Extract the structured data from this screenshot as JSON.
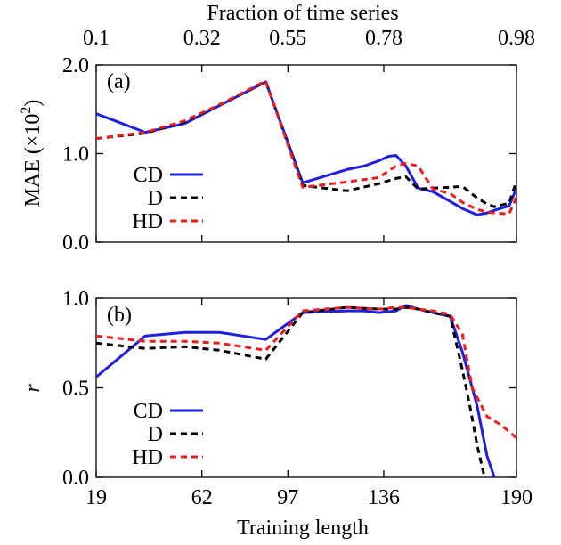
{
  "chart_data": [
    {
      "type": "line",
      "panel_label": "(a)",
      "ylabel": "MAE (×10²)",
      "ylabel_main": "MAE (×10",
      "ylabel_sup": "2",
      "ylabel_end": ")",
      "xlabel": "Training length",
      "top_axis_label": "Fraction of time series",
      "top_ticks": [
        "0.1",
        "0.32",
        "0.55",
        "0.78",
        "0.98"
      ],
      "x_ticks": [
        19,
        62,
        97,
        136,
        190
      ],
      "y_ticks": [
        0.0,
        1.0,
        2.0
      ],
      "y_tick_labels": [
        "0.0",
        "1.0",
        "2.0"
      ],
      "xlim": [
        19,
        190
      ],
      "ylim": [
        0.0,
        2.0
      ],
      "legend_position": "lower-left",
      "series": [
        {
          "name": "CD",
          "color": "#1f1fe0",
          "dash": "solid",
          "x": [
            19,
            39,
            55,
            69,
            88,
            103,
            121,
            128,
            134,
            138,
            141,
            145,
            150,
            156,
            163,
            168,
            174,
            178,
            181,
            187,
            190
          ],
          "y": [
            1.45,
            1.24,
            1.34,
            1.54,
            1.81,
            0.67,
            0.82,
            0.86,
            0.92,
            0.97,
            0.98,
            0.86,
            0.61,
            0.57,
            0.46,
            0.38,
            0.31,
            0.33,
            0.36,
            0.41,
            0.61
          ]
        },
        {
          "name": "D",
          "color": "#000000",
          "dash": "dashed",
          "x": [
            19,
            39,
            55,
            69,
            88,
            103,
            121,
            134,
            141,
            145,
            150,
            156,
            163,
            168,
            174,
            178,
            181,
            187,
            190
          ],
          "y": [
            1.17,
            1.23,
            1.36,
            1.55,
            1.81,
            0.64,
            0.58,
            0.66,
            0.72,
            0.74,
            0.6,
            0.61,
            0.62,
            0.63,
            0.5,
            0.43,
            0.4,
            0.44,
            0.69
          ]
        },
        {
          "name": "HD",
          "color": "#ee1c1c",
          "dash": "dashed",
          "x": [
            19,
            39,
            55,
            69,
            88,
            103,
            121,
            134,
            141,
            145,
            150,
            156,
            163,
            168,
            174,
            178,
            181,
            187,
            190
          ],
          "y": [
            1.17,
            1.24,
            1.37,
            1.55,
            1.82,
            0.62,
            0.68,
            0.73,
            0.86,
            0.89,
            0.86,
            0.6,
            0.55,
            0.45,
            0.37,
            0.34,
            0.33,
            0.32,
            0.51
          ]
        }
      ]
    },
    {
      "type": "line",
      "panel_label": "(b)",
      "ylabel": "r",
      "xlabel": "Training length",
      "x_ticks": [
        19,
        62,
        97,
        136,
        190
      ],
      "y_ticks": [
        0.0,
        0.5,
        1.0
      ],
      "y_tick_labels": [
        "0.0",
        "0.5",
        "1.0"
      ],
      "xlim": [
        19,
        190
      ],
      "ylim": [
        0.0,
        1.0
      ],
      "legend_position": "lower-left",
      "series": [
        {
          "name": "CD",
          "color": "#1f1fe0",
          "dash": "solid",
          "x": [
            19,
            39,
            55,
            69,
            88,
            103,
            121,
            128,
            134,
            141,
            145,
            150,
            156,
            163,
            168,
            174,
            178,
            181,
            187,
            190
          ],
          "y": [
            0.56,
            0.79,
            0.81,
            0.81,
            0.77,
            0.92,
            0.93,
            0.93,
            0.92,
            0.93,
            0.96,
            0.94,
            0.92,
            0.9,
            0.7,
            0.4,
            0.12,
            0.0,
            -0.05,
            -0.1
          ]
        },
        {
          "name": "D",
          "color": "#000000",
          "dash": "dashed",
          "x": [
            19,
            39,
            55,
            69,
            88,
            103,
            121,
            134,
            141,
            145,
            150,
            156,
            163,
            168,
            171,
            174,
            177,
            180
          ],
          "y": [
            0.75,
            0.72,
            0.73,
            0.71,
            0.66,
            0.92,
            0.95,
            0.94,
            0.94,
            0.95,
            0.94,
            0.92,
            0.9,
            0.6,
            0.4,
            0.18,
            0.0,
            -0.1
          ]
        },
        {
          "name": "HD",
          "color": "#ee1c1c",
          "dash": "dashed",
          "x": [
            19,
            39,
            55,
            69,
            88,
            103,
            121,
            134,
            141,
            145,
            150,
            156,
            163,
            168,
            172,
            178,
            184,
            190
          ],
          "y": [
            0.79,
            0.76,
            0.76,
            0.75,
            0.71,
            0.93,
            0.95,
            0.94,
            0.95,
            0.95,
            0.94,
            0.93,
            0.91,
            0.8,
            0.5,
            0.34,
            0.29,
            0.22
          ]
        }
      ]
    }
  ]
}
